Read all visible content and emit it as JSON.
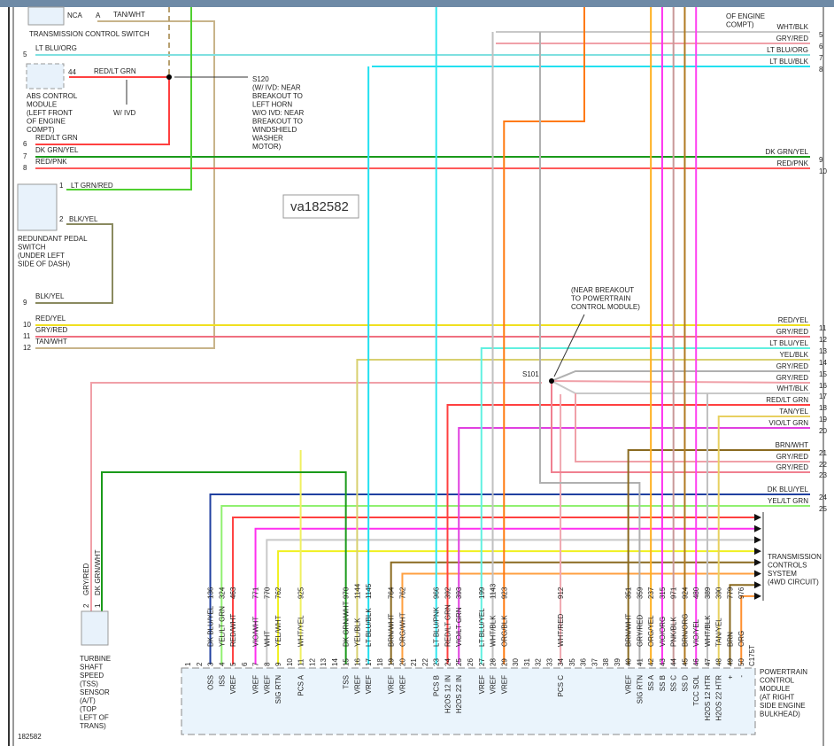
{
  "watermark": "va182582",
  "footer_id": "182582",
  "transmission_control_switch": {
    "pin": "NCA",
    "connector": "A",
    "wire": "TAN/WHT",
    "name": "TRANSMISSION CONTROL SWITCH"
  },
  "abs_module": {
    "pin": "44",
    "wire": "RED/LT GRN",
    "name": [
      "ABS CONTROL",
      "MODULE",
      "(LEFT FRONT",
      "OF ENGINE",
      "COMPT)"
    ],
    "note": "W/ IVD"
  },
  "s120": [
    "S120",
    "(W/ IVD: NEAR",
    "BREAKOUT TO",
    "LEFT HORN",
    "W/O IVD: NEAR",
    "BREAKOUT TO",
    "WINDSHIELD",
    "WASHER",
    "MOTOR)"
  ],
  "top_right_note": [
    "OF ENGINE",
    "COMPT)"
  ],
  "pedal_switch": {
    "pin1": "1",
    "pin1_wire": "LT GRN/RED",
    "pin2": "2",
    "pin2_wire": "BLK/YEL",
    "name": [
      "REDUNDANT PEDAL",
      "SWITCH",
      "(UNDER LEFT",
      "SIDE OF DASH)"
    ]
  },
  "left_wires": [
    {
      "num": "5",
      "label": "LT BLU/ORG"
    },
    {
      "num": "6",
      "label": "RED/LT GRN"
    },
    {
      "num": "7",
      "label": "DK GRN/YEL"
    },
    {
      "num": "8",
      "label": "RED/PNK"
    },
    {
      "num": "9",
      "label": "BLK/YEL"
    },
    {
      "num": "10",
      "label": "RED/YEL"
    },
    {
      "num": "11",
      "label": "GRY/RED"
    },
    {
      "num": "12",
      "label": "TAN/WHT"
    }
  ],
  "right_wires": [
    {
      "num": "5",
      "label": "WHT/BLK",
      "color": "#c8c8c8"
    },
    {
      "num": "6",
      "label": "GRY/RED",
      "color": "#f0a0a8"
    },
    {
      "num": "7",
      "label": "LT BLU/ORG",
      "color": "#7fe0e0"
    },
    {
      "num": "8",
      "label": "LT BLU/BLK",
      "color": "#22e0f0"
    },
    {
      "num": "9",
      "label": "DK GRN/YEL",
      "color": "#1a9a1a"
    },
    {
      "num": "10",
      "label": "RED/PNK",
      "color": "#ff5a5a"
    },
    {
      "num": "11",
      "label": "RED/YEL",
      "color": "#f0e020"
    },
    {
      "num": "12",
      "label": "GRY/RED",
      "color": "#f07080"
    },
    {
      "num": "13",
      "label": "LT BLU/YEL",
      "color": "#60f0e0"
    },
    {
      "num": "14",
      "label": "YEL/BLK",
      "color": "#d8d070"
    },
    {
      "num": "15",
      "label": "GRY/RED",
      "color": "#b0b0b0"
    },
    {
      "num": "16",
      "label": "GRY/RED",
      "color": "#f0a0a8"
    },
    {
      "num": "17",
      "label": "WHT/BLK",
      "color": "#c8c8c8"
    },
    {
      "num": "18",
      "label": "RED/LT GRN",
      "color": "#ff4040"
    },
    {
      "num": "19",
      "label": "TAN/YEL",
      "color": "#e0d090"
    },
    {
      "num": "20",
      "label": "VIO/LT GRN",
      "color": "#e040e0"
    },
    {
      "num": "21",
      "label": "BRN/WHT",
      "color": "#8a6a20"
    },
    {
      "num": "22",
      "label": "GRY/RED",
      "color": "#f0a0a8"
    },
    {
      "num": "23",
      "label": "GRY/RED",
      "color": "#f08090"
    },
    {
      "num": "24",
      "label": "DK BLU/YEL",
      "color": "#2040a0"
    },
    {
      "num": "25",
      "label": "YEL/LT GRN",
      "color": "#90f070"
    }
  ],
  "s101": {
    "label": "S101",
    "note": [
      "(NEAR BREAKOUT",
      "TO POWERTRAIN",
      "CONTROL MODULE)"
    ]
  },
  "tss_sensor": {
    "pin1": "1",
    "pin1_wire": "DK GRN/WHT",
    "pin2": "2",
    "pin2_wire": "GRY/RED",
    "name": [
      "TURBINE",
      "SHAFT",
      "SPEED",
      "(TSS)",
      "SENSOR",
      "(A/T)",
      "(TOP",
      "LEFT OF",
      "TRANS)"
    ]
  },
  "trans_controls": [
    "TRANSMISSION",
    "CONTROLS",
    "SYSTEM",
    "(4WD CIRCUIT)"
  ],
  "pcm": {
    "name": [
      "POWERTRAIN",
      "CONTROL",
      "MODULE",
      "(AT RIGHT",
      "SIDE ENGINE",
      "BULKHEAD)"
    ],
    "connector": "C175T"
  },
  "pcm_pins": [
    {
      "pin": "1",
      "wire": "",
      "circuit": "",
      "func": "",
      "color": ""
    },
    {
      "pin": "2",
      "wire": "",
      "circuit": "",
      "func": "",
      "color": ""
    },
    {
      "pin": "3",
      "wire": "DK BLU/YEL",
      "circuit": "136",
      "func": "OSS",
      "color": "#2040a0"
    },
    {
      "pin": "4",
      "wire": "YEL/LT GRN",
      "circuit": "324",
      "func": "ISS",
      "color": "#f0e020"
    },
    {
      "pin": "5",
      "wire": "RED/WHT",
      "circuit": "463",
      "func": "VREF",
      "color": "#ff4040"
    },
    {
      "pin": "6",
      "wire": "",
      "circuit": "",
      "func": "",
      "color": ""
    },
    {
      "pin": "7",
      "wire": "VIO/WHT",
      "circuit": "771",
      "func": "VREF",
      "color": "#ff30f0"
    },
    {
      "pin": "8",
      "wire": "WHT",
      "circuit": "770",
      "func": "VREF",
      "color": "#c8c8c8"
    },
    {
      "pin": "9",
      "wire": "YEL/WHT",
      "circuit": "762",
      "func": "SIG RTN",
      "color": "#f0f020"
    },
    {
      "pin": "10",
      "wire": "",
      "circuit": "",
      "func": "",
      "color": ""
    },
    {
      "pin": "11",
      "wire": "WHT/YEL",
      "circuit": "925",
      "func": "PCS A",
      "color": "#f0f060"
    },
    {
      "pin": "12",
      "wire": "",
      "circuit": "",
      "func": "",
      "color": ""
    },
    {
      "pin": "13",
      "wire": "",
      "circuit": "",
      "func": "",
      "color": ""
    },
    {
      "pin": "14",
      "wire": "",
      "circuit": "",
      "func": "",
      "color": ""
    },
    {
      "pin": "15",
      "wire": "DK GRN/WHT",
      "circuit": "970",
      "func": "TSS",
      "color": "#1a9a1a"
    },
    {
      "pin": "16",
      "wire": "YEL/BLK",
      "circuit": "1144",
      "func": "VREF",
      "color": "#e0d040"
    },
    {
      "pin": "17",
      "wire": "LT BLU/BLK",
      "circuit": "1145",
      "func": "VREF",
      "color": "#22e0f0"
    },
    {
      "pin": "18",
      "wire": "",
      "circuit": "",
      "func": "",
      "color": ""
    },
    {
      "pin": "19",
      "wire": "BRN/WHT",
      "circuit": "764",
      "func": "VREF",
      "color": "#8a6a20"
    },
    {
      "pin": "20",
      "wire": "ORG/WHT",
      "circuit": "762",
      "func": "VREF",
      "color": "#ffa040"
    },
    {
      "pin": "21",
      "wire": "",
      "circuit": "",
      "func": "",
      "color": ""
    },
    {
      "pin": "22",
      "wire": "",
      "circuit": "",
      "func": "",
      "color": ""
    },
    {
      "pin": "23",
      "wire": "LT BLU/PNK",
      "circuit": "966",
      "func": "PCS B",
      "color": "#30e8f0"
    },
    {
      "pin": "24",
      "wire": "RED/LT GRN",
      "circuit": "392",
      "func": "H2OS 12 IN",
      "color": "#ff4040"
    },
    {
      "pin": "25",
      "wire": "VIO/LT GRN",
      "circuit": "393",
      "func": "H2OS 22 IN",
      "color": "#e040e0"
    },
    {
      "pin": "26",
      "wire": "",
      "circuit": "",
      "func": "",
      "color": ""
    },
    {
      "pin": "27",
      "wire": "LT BLU/YEL",
      "circuit": "199",
      "func": "VREF",
      "color": "#60f0e0"
    },
    {
      "pin": "28",
      "wire": "WHT/BLK",
      "circuit": "1143",
      "func": "VREF",
      "color": "#c0c0c0"
    },
    {
      "pin": "29",
      "wire": "ORG/BLK",
      "circuit": "923",
      "func": "VREF",
      "color": "#ff7a10"
    },
    {
      "pin": "30",
      "wire": "",
      "circuit": "",
      "func": "",
      "color": ""
    },
    {
      "pin": "31",
      "wire": "",
      "circuit": "",
      "func": "",
      "color": ""
    },
    {
      "pin": "32",
      "wire": "",
      "circuit": "",
      "func": "",
      "color": ""
    },
    {
      "pin": "33",
      "wire": "",
      "circuit": "",
      "func": "",
      "color": ""
    },
    {
      "pin": "34",
      "wire": "WHT/RED",
      "circuit": "912",
      "func": "PCS C",
      "color": "#f0a8b0"
    },
    {
      "pin": "35",
      "wire": "",
      "circuit": "",
      "func": "",
      "color": ""
    },
    {
      "pin": "36",
      "wire": "",
      "circuit": "",
      "func": "",
      "color": ""
    },
    {
      "pin": "37",
      "wire": "",
      "circuit": "",
      "func": "",
      "color": ""
    },
    {
      "pin": "38",
      "wire": "",
      "circuit": "",
      "func": "",
      "color": ""
    },
    {
      "pin": "39",
      "wire": "",
      "circuit": "",
      "func": "",
      "color": ""
    },
    {
      "pin": "40",
      "wire": "BRN/WHT",
      "circuit": "351",
      "func": "VREF",
      "color": "#8a6a20"
    },
    {
      "pin": "41",
      "wire": "GRY/RED",
      "circuit": "359",
      "func": "SIG RTN",
      "color": "#f0a0a8"
    },
    {
      "pin": "42",
      "wire": "ORG/YEL",
      "circuit": "237",
      "func": "SS A",
      "color": "#ffb020"
    },
    {
      "pin": "43",
      "wire": "VIO/ORG",
      "circuit": "315",
      "func": "SS B",
      "color": "#ff30f0"
    },
    {
      "pin": "44",
      "wire": "PNK/BLK",
      "circuit": "971",
      "func": "SS C",
      "color": "#c89898"
    },
    {
      "pin": "45",
      "wire": "BRN/ORG",
      "circuit": "924",
      "func": "SS D",
      "color": "#b07a20"
    },
    {
      "pin": "46",
      "wire": "VIO/YEL",
      "circuit": "480",
      "func": "TCC SOL",
      "color": "#ff40f0"
    },
    {
      "pin": "47",
      "wire": "WHT/BLK",
      "circuit": "389",
      "func": "H2OS 12 HTR",
      "color": "#c0c0c0"
    },
    {
      "pin": "48",
      "wire": "TAN/YEL",
      "circuit": "390",
      "func": "H2OS 22 HTR",
      "color": "#e8d060"
    },
    {
      "pin": "49",
      "wire": "BRN",
      "circuit": "779",
      "func": "+",
      "color": "#8a6a20"
    },
    {
      "pin": "50",
      "wire": "ORG",
      "circuit": "976",
      "func": "-",
      "color": "#ff9030"
    }
  ]
}
